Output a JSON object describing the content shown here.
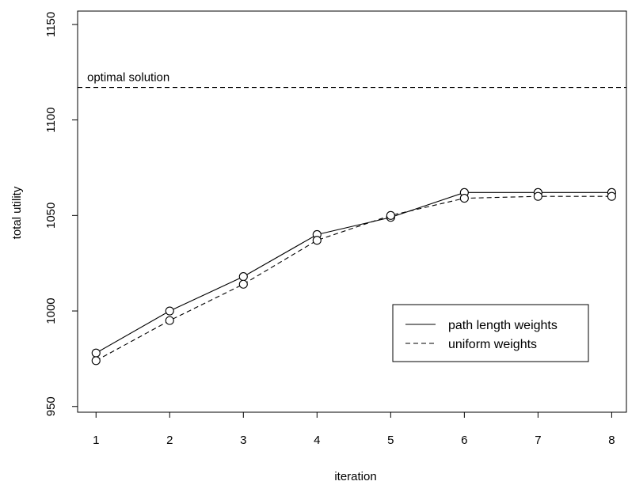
{
  "chart_data": {
    "type": "line",
    "title": "",
    "xlabel": "iteration",
    "ylabel": "total utility",
    "x": [
      1,
      2,
      3,
      4,
      5,
      6,
      7,
      8
    ],
    "xticks": [
      "1",
      "2",
      "3",
      "4",
      "5",
      "6",
      "7",
      "8"
    ],
    "yticks": [
      "950",
      "1000",
      "1050",
      "1100",
      "1150"
    ],
    "xlim": [
      0.75,
      8.2
    ],
    "ylim": [
      947,
      1157
    ],
    "grid": false,
    "legend_position": "bottom-right",
    "series": [
      {
        "name": "path length weights",
        "line": "solid",
        "marker": "open-circle",
        "values": [
          978,
          1000,
          1018,
          1040,
          1049,
          1062,
          1062,
          1062
        ]
      },
      {
        "name": "uniform weights",
        "line": "dashed",
        "marker": "open-circle",
        "values": [
          974,
          995,
          1014,
          1037,
          1050,
          1059,
          1060,
          1060
        ]
      }
    ],
    "reference_line": {
      "label": "optimal solution",
      "value": 1117,
      "line": "dashed"
    }
  }
}
